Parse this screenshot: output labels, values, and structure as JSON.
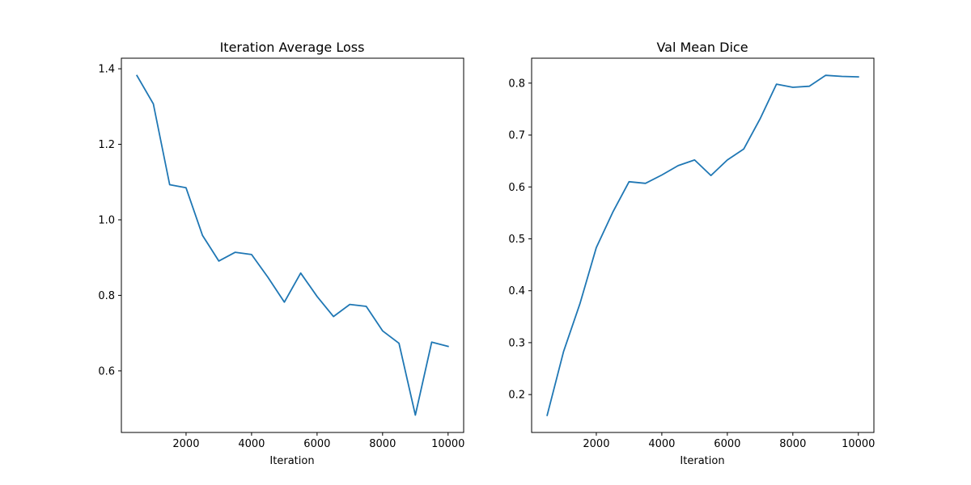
{
  "chart_data": [
    {
      "type": "line",
      "title": "Iteration Average Loss",
      "xlabel": "Iteration",
      "ylabel": "",
      "xlim": [
        25,
        10475
      ],
      "ylim": [
        0.437,
        1.428
      ],
      "xticks": [
        2000,
        4000,
        6000,
        8000,
        10000
      ],
      "yticks": [
        0.6,
        0.8,
        1.0,
        1.2,
        1.4
      ],
      "ytick_labels": [
        "0.6",
        "0.8",
        "1.0",
        "1.2",
        "1.4"
      ],
      "grid": false,
      "color": "#1f77b4",
      "x": [
        500,
        1000,
        1500,
        2000,
        2500,
        3000,
        3500,
        4000,
        4500,
        5000,
        5500,
        6000,
        6500,
        7000,
        7500,
        8000,
        8500,
        9000,
        9500,
        10000
      ],
      "y": [
        1.382,
        1.307,
        1.093,
        1.085,
        0.959,
        0.891,
        0.914,
        0.908,
        0.848,
        0.782,
        0.859,
        0.797,
        0.744,
        0.776,
        0.771,
        0.706,
        0.673,
        0.483,
        0.676,
        0.665
      ]
    },
    {
      "type": "line",
      "title": "Val Mean Dice",
      "xlabel": "Iteration",
      "ylabel": "",
      "xlim": [
        25,
        10475
      ],
      "ylim": [
        0.127,
        0.848
      ],
      "xticks": [
        2000,
        4000,
        6000,
        8000,
        10000
      ],
      "yticks": [
        0.2,
        0.3,
        0.4,
        0.5,
        0.6,
        0.7,
        0.8
      ],
      "ytick_labels": [
        "0.2",
        "0.3",
        "0.4",
        "0.5",
        "0.6",
        "0.7",
        "0.8"
      ],
      "grid": false,
      "color": "#1f77b4",
      "x": [
        500,
        1000,
        1500,
        2000,
        2500,
        3000,
        3500,
        4000,
        4500,
        5000,
        5500,
        6000,
        6500,
        7000,
        7500,
        8000,
        8500,
        9000,
        9500,
        10000
      ],
      "y": [
        0.16,
        0.283,
        0.375,
        0.483,
        0.551,
        0.61,
        0.607,
        0.623,
        0.641,
        0.652,
        0.622,
        0.652,
        0.673,
        0.731,
        0.798,
        0.792,
        0.794,
        0.815,
        0.813,
        0.812
      ]
    }
  ]
}
